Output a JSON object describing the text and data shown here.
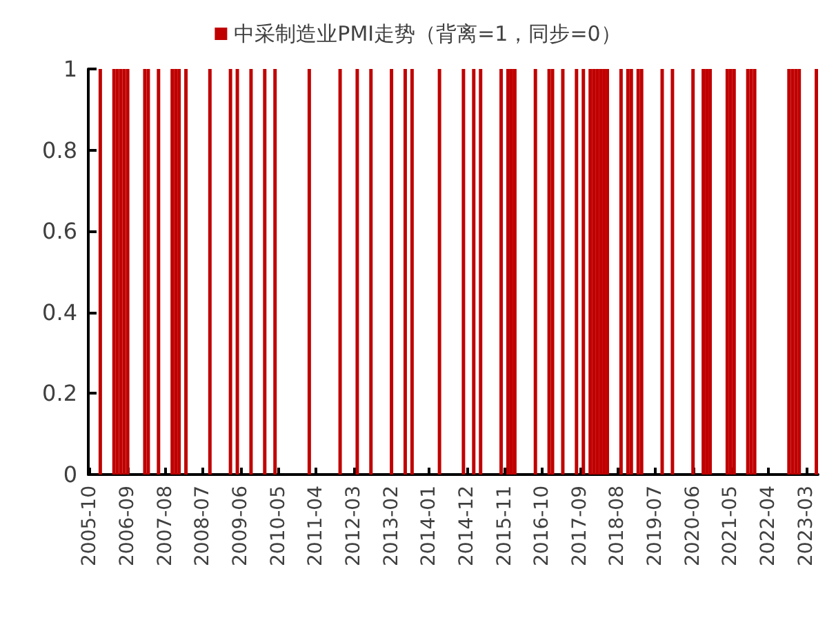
{
  "chart_data": {
    "type": "bar",
    "legend": "top",
    "grid": false,
    "categories": [
      "2005-10",
      null,
      null,
      null,
      null,
      null,
      null,
      null,
      null,
      null,
      null,
      "2006-09",
      null,
      null,
      null,
      null,
      null,
      null,
      null,
      null,
      null,
      null,
      "2007-08",
      null,
      null,
      null,
      null,
      null,
      null,
      null,
      null,
      null,
      null,
      "2008-07",
      null,
      null,
      null,
      null,
      null,
      null,
      null,
      null,
      null,
      null,
      "2009-06",
      null,
      null,
      null,
      null,
      null,
      null,
      null,
      null,
      null,
      null,
      "2010-05",
      null,
      null,
      null,
      null,
      null,
      null,
      null,
      null,
      null,
      null,
      "2011-04",
      null,
      null,
      null,
      null,
      null,
      null,
      null,
      null,
      null,
      null,
      "2012-03",
      null,
      null,
      null,
      null,
      null,
      null,
      null,
      null,
      null,
      null,
      "2013-02",
      null,
      null,
      null,
      null,
      null,
      null,
      null,
      null,
      null,
      null,
      "2014-01",
      null,
      null,
      null,
      null,
      null,
      null,
      null,
      null,
      null,
      null,
      "2014-12",
      null,
      null,
      null,
      null,
      null,
      null,
      null,
      null,
      null,
      null,
      "2015-11",
      null,
      null,
      null,
      null,
      null,
      null,
      null,
      null,
      null,
      null,
      "2016-10",
      null,
      null,
      null,
      null,
      null,
      null,
      null,
      null,
      null,
      null,
      "2017-09",
      null,
      null,
      null,
      null,
      null,
      null,
      null,
      null,
      null,
      null,
      "2018-08",
      null,
      null,
      null,
      null,
      null,
      null,
      null,
      null,
      null,
      null,
      "2019-07",
      null,
      null,
      null,
      null,
      null,
      null,
      null,
      null,
      null,
      null,
      "2020-06",
      null,
      null,
      null,
      null,
      null,
      null,
      null,
      null,
      null,
      null,
      "2021-05",
      null,
      null,
      null,
      null,
      null,
      null,
      null,
      null,
      null,
      null,
      "2022-04",
      null,
      null,
      null,
      null,
      null,
      null,
      null,
      null,
      null,
      null,
      "2023-03",
      null,
      null,
      null
    ],
    "ylim": [
      0,
      1
    ],
    "yticks": [
      0,
      0.2,
      0.4,
      0.6,
      0.8,
      1
    ],
    "series": [
      {
        "name": "中采制造业PMI走势（背离=1，同步=0）",
        "color": "#c00000",
        "values": [
          0,
          0,
          0,
          1,
          0,
          0,
          0,
          1,
          1,
          1,
          1,
          1,
          0,
          0,
          0,
          0,
          1,
          1,
          0,
          0,
          1,
          0,
          0,
          0,
          1,
          1,
          1,
          0,
          1,
          0,
          0,
          0,
          0,
          0,
          0,
          1,
          0,
          0,
          0,
          0,
          0,
          1,
          0,
          1,
          0,
          0,
          0,
          1,
          0,
          0,
          0,
          1,
          0,
          0,
          1,
          0,
          0,
          0,
          0,
          0,
          0,
          0,
          0,
          0,
          1,
          0,
          0,
          0,
          0,
          0,
          0,
          0,
          0,
          1,
          0,
          0,
          0,
          0,
          1,
          0,
          0,
          0,
          1,
          0,
          0,
          0,
          0,
          0,
          1,
          0,
          0,
          0,
          1,
          0,
          1,
          0,
          0,
          0,
          0,
          0,
          0,
          0,
          1,
          0,
          0,
          0,
          0,
          0,
          0,
          1,
          0,
          0,
          1,
          0,
          1,
          0,
          0,
          0,
          0,
          0,
          1,
          0,
          1,
          1,
          1,
          0,
          0,
          0,
          0,
          0,
          1,
          0,
          0,
          0,
          1,
          1,
          0,
          0,
          1,
          0,
          0,
          0,
          1,
          0,
          1,
          0,
          1,
          1,
          1,
          1,
          1,
          1,
          0,
          0,
          0,
          1,
          0,
          1,
          1,
          0,
          1,
          1,
          0,
          0,
          0,
          0,
          0,
          1,
          0,
          0,
          1,
          0,
          0,
          0,
          0,
          0,
          1,
          0,
          0,
          1,
          1,
          1,
          0,
          0,
          0,
          0,
          1,
          1,
          1,
          0,
          0,
          0,
          1,
          1,
          1,
          0,
          0,
          0,
          0,
          0,
          0,
          0,
          0,
          0,
          1,
          1,
          1,
          1,
          0,
          0,
          0,
          0,
          1
        ]
      }
    ]
  }
}
